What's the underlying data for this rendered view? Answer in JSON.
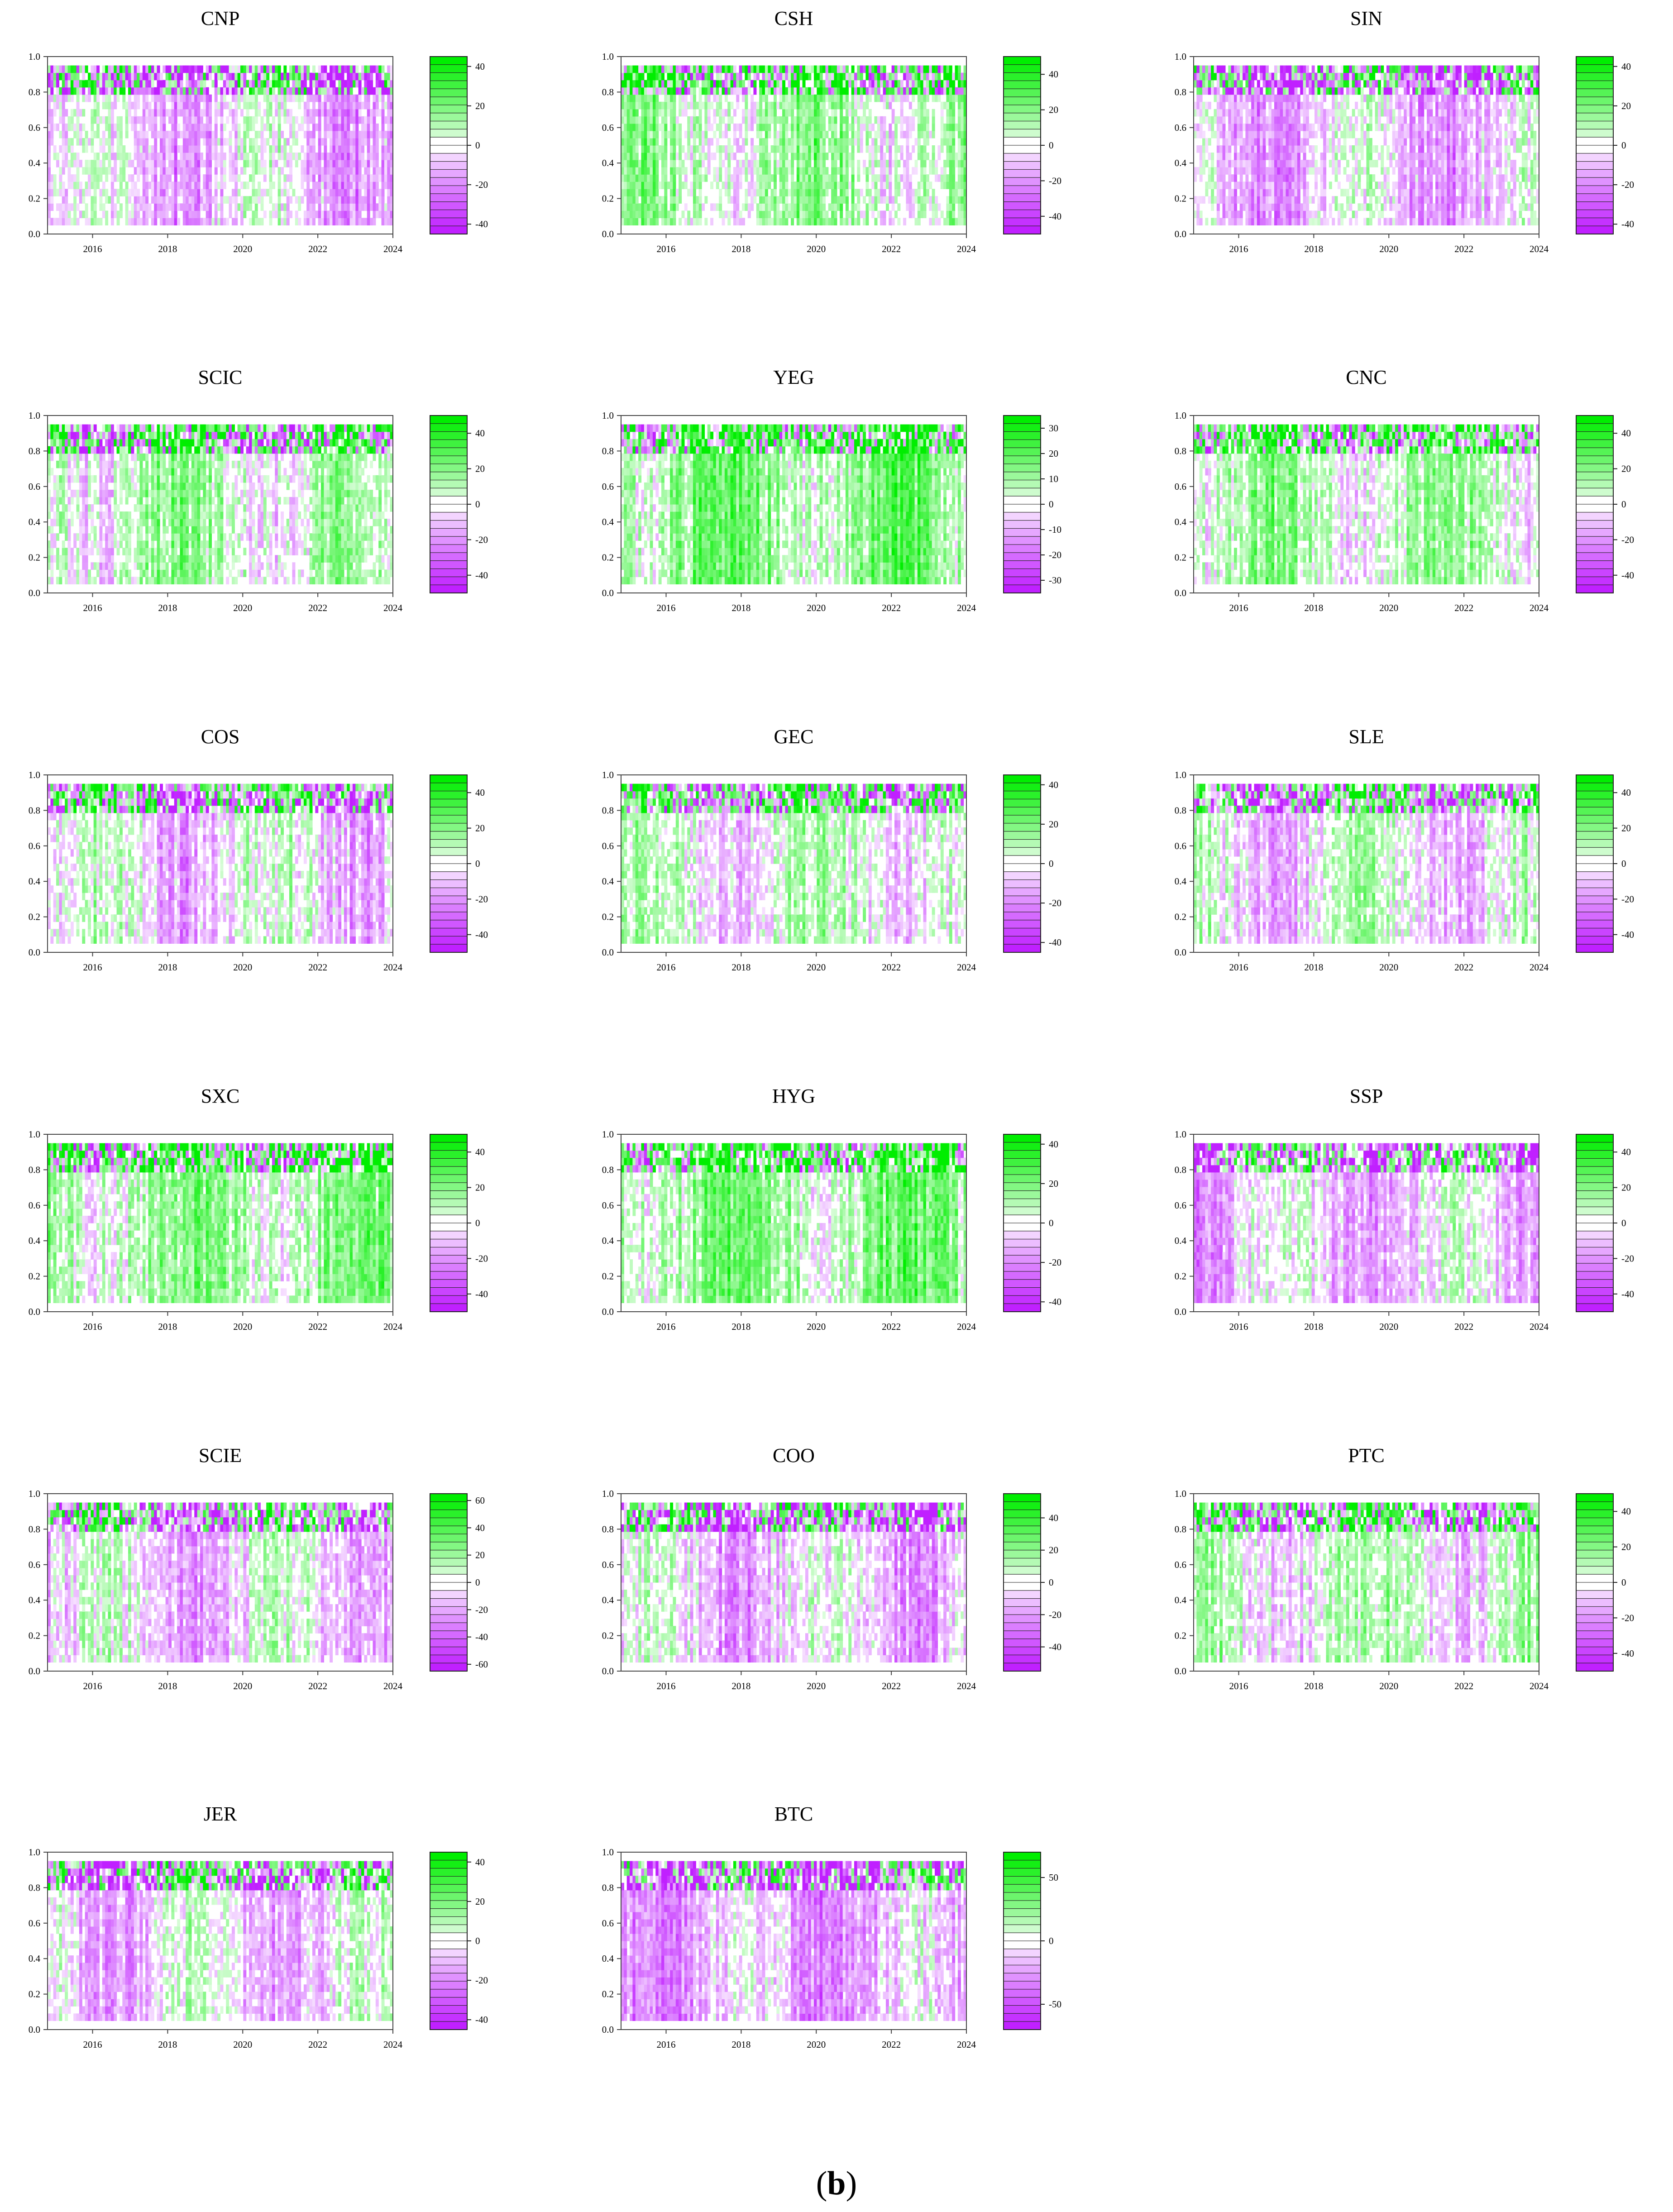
{
  "figure": {
    "caption_open": "(",
    "caption_letter": "b",
    "caption_close": ")",
    "palette": {
      "positive": "#00ee00",
      "negative": "#c020ff",
      "neutral": "#ffffff",
      "frame": "#444444"
    }
  },
  "chart_data": [
    {
      "type": "heatmap",
      "title": "CNP",
      "x_ticks": [
        "2016",
        "2018",
        "2020",
        "2022",
        "2024"
      ],
      "y_ticks": [
        "0.0",
        "0.2",
        "0.4",
        "0.6",
        "0.8",
        "1.0"
      ],
      "ylim": [
        0,
        1
      ],
      "xlim": [
        2014.8,
        2024
      ],
      "colorbar_labels": [
        "40",
        "20",
        "0",
        "-20",
        "-40"
      ],
      "colorbar_range": [
        -45,
        45
      ],
      "tone": -0.3
    },
    {
      "type": "heatmap",
      "title": "CSH",
      "x_ticks": [
        "2016",
        "2018",
        "2020",
        "2022",
        "2024"
      ],
      "y_ticks": [
        "0.0",
        "0.2",
        "0.4",
        "0.6",
        "0.8",
        "1.0"
      ],
      "ylim": [
        0,
        1
      ],
      "xlim": [
        2014.8,
        2024
      ],
      "colorbar_labels": [
        "40",
        "20",
        "0",
        "-20",
        "-40"
      ],
      "colorbar_range": [
        -50,
        50
      ],
      "tone": 0.35
    },
    {
      "type": "heatmap",
      "title": "SIN",
      "x_ticks": [
        "2016",
        "2018",
        "2020",
        "2022",
        "2024"
      ],
      "y_ticks": [
        "0.0",
        "0.2",
        "0.4",
        "0.6",
        "0.8",
        "1.0"
      ],
      "ylim": [
        0,
        1
      ],
      "xlim": [
        2014.8,
        2024
      ],
      "colorbar_labels": [
        "40",
        "20",
        "0",
        "-20",
        "-40"
      ],
      "colorbar_range": [
        -45,
        45
      ],
      "tone": -0.35
    },
    {
      "type": "heatmap",
      "title": "SCIC",
      "x_ticks": [
        "2016",
        "2018",
        "2020",
        "2022",
        "2024"
      ],
      "y_ticks": [
        "0.0",
        "0.2",
        "0.4",
        "0.6",
        "0.8",
        "1.0"
      ],
      "ylim": [
        0,
        1
      ],
      "xlim": [
        2014.8,
        2024
      ],
      "colorbar_labels": [
        "40",
        "20",
        "0",
        "-20",
        "-40"
      ],
      "colorbar_range": [
        -50,
        50
      ],
      "tone": 0.25
    },
    {
      "type": "heatmap",
      "title": "YEG",
      "x_ticks": [
        "2016",
        "2018",
        "2020",
        "2022",
        "2024"
      ],
      "y_ticks": [
        "0.0",
        "0.2",
        "0.4",
        "0.6",
        "0.8",
        "1.0"
      ],
      "ylim": [
        0,
        1
      ],
      "xlim": [
        2014.8,
        2024
      ],
      "colorbar_labels": [
        "30",
        "20",
        "10",
        "0",
        "-10",
        "-20",
        "-30"
      ],
      "colorbar_range": [
        -35,
        35
      ],
      "tone": 0.6
    },
    {
      "type": "heatmap",
      "title": "CNC",
      "x_ticks": [
        "2016",
        "2018",
        "2020",
        "2022",
        "2024"
      ],
      "y_ticks": [
        "0.0",
        "0.2",
        "0.4",
        "0.6",
        "0.8",
        "1.0"
      ],
      "ylim": [
        0,
        1
      ],
      "xlim": [
        2014.8,
        2024
      ],
      "colorbar_labels": [
        "40",
        "20",
        "0",
        "-20",
        "-40"
      ],
      "colorbar_range": [
        -50,
        50
      ],
      "tone": 0.3
    },
    {
      "type": "heatmap",
      "title": "COS",
      "x_ticks": [
        "2016",
        "2018",
        "2020",
        "2022",
        "2024"
      ],
      "y_ticks": [
        "0.0",
        "0.2",
        "0.4",
        "0.6",
        "0.8",
        "1.0"
      ],
      "ylim": [
        0,
        1
      ],
      "xlim": [
        2014.8,
        2024
      ],
      "colorbar_labels": [
        "40",
        "20",
        "0",
        "-20",
        "-40"
      ],
      "colorbar_range": [
        -50,
        50
      ],
      "tone": -0.15
    },
    {
      "type": "heatmap",
      "title": "GEC",
      "x_ticks": [
        "2016",
        "2018",
        "2020",
        "2022",
        "2024"
      ],
      "y_ticks": [
        "0.0",
        "0.2",
        "0.4",
        "0.6",
        "0.8",
        "1.0"
      ],
      "ylim": [
        0,
        1
      ],
      "xlim": [
        2014.8,
        2024
      ],
      "colorbar_labels": [
        "40",
        "20",
        "0",
        "-20",
        "-40"
      ],
      "colorbar_range": [
        -45,
        45
      ],
      "tone": 0.1
    },
    {
      "type": "heatmap",
      "title": "SLE",
      "x_ticks": [
        "2016",
        "2018",
        "2020",
        "2022",
        "2024"
      ],
      "y_ticks": [
        "0.0",
        "0.2",
        "0.4",
        "0.6",
        "0.8",
        "1.0"
      ],
      "ylim": [
        0,
        1
      ],
      "xlim": [
        2014.8,
        2024
      ],
      "colorbar_labels": [
        "40",
        "20",
        "0",
        "-20",
        "-40"
      ],
      "colorbar_range": [
        -50,
        50
      ],
      "tone": -0.1
    },
    {
      "type": "heatmap",
      "title": "SXC",
      "x_ticks": [
        "2016",
        "2018",
        "2020",
        "2022",
        "2024"
      ],
      "y_ticks": [
        "0.0",
        "0.2",
        "0.4",
        "0.6",
        "0.8",
        "1.0"
      ],
      "ylim": [
        0,
        1
      ],
      "xlim": [
        2014.8,
        2024
      ],
      "colorbar_labels": [
        "40",
        "20",
        "0",
        "-20",
        "-40"
      ],
      "colorbar_range": [
        -50,
        50
      ],
      "tone": 0.45
    },
    {
      "type": "heatmap",
      "title": "HYG",
      "x_ticks": [
        "2016",
        "2018",
        "2020",
        "2022",
        "2024"
      ],
      "y_ticks": [
        "0.0",
        "0.2",
        "0.4",
        "0.6",
        "0.8",
        "1.0"
      ],
      "ylim": [
        0,
        1
      ],
      "xlim": [
        2014.8,
        2024
      ],
      "colorbar_labels": [
        "40",
        "20",
        "0",
        "-20",
        "-40"
      ],
      "colorbar_range": [
        -45,
        45
      ],
      "tone": 0.55
    },
    {
      "type": "heatmap",
      "title": "SSP",
      "x_ticks": [
        "2016",
        "2018",
        "2020",
        "2022",
        "2024"
      ],
      "y_ticks": [
        "0.0",
        "0.2",
        "0.4",
        "0.6",
        "0.8",
        "1.0"
      ],
      "ylim": [
        0,
        1
      ],
      "xlim": [
        2014.8,
        2024
      ],
      "colorbar_labels": [
        "40",
        "20",
        "0",
        "-20",
        "-40"
      ],
      "colorbar_range": [
        -50,
        50
      ],
      "tone": -0.3
    },
    {
      "type": "heatmap",
      "title": "SCIE",
      "x_ticks": [
        "2016",
        "2018",
        "2020",
        "2022",
        "2024"
      ],
      "y_ticks": [
        "0.0",
        "0.2",
        "0.4",
        "0.6",
        "0.8",
        "1.0"
      ],
      "ylim": [
        0,
        1
      ],
      "xlim": [
        2014.8,
        2024
      ],
      "colorbar_labels": [
        "60",
        "40",
        "20",
        "0",
        "-20",
        "-40",
        "-60"
      ],
      "colorbar_range": [
        -65,
        65
      ],
      "tone": -0.2
    },
    {
      "type": "heatmap",
      "title": "COO",
      "x_ticks": [
        "2016",
        "2018",
        "2020",
        "2022",
        "2024"
      ],
      "y_ticks": [
        "0.0",
        "0.2",
        "0.4",
        "0.6",
        "0.8",
        "1.0"
      ],
      "ylim": [
        0,
        1
      ],
      "xlim": [
        2014.8,
        2024
      ],
      "colorbar_labels": [
        "40",
        "20",
        "0",
        "-20",
        "-40"
      ],
      "colorbar_range": [
        -55,
        55
      ],
      "tone": -0.3
    },
    {
      "type": "heatmap",
      "title": "PTC",
      "x_ticks": [
        "2016",
        "2018",
        "2020",
        "2022",
        "2024"
      ],
      "y_ticks": [
        "0.0",
        "0.2",
        "0.4",
        "0.6",
        "0.8",
        "1.0"
      ],
      "ylim": [
        0,
        1
      ],
      "xlim": [
        2014.8,
        2024
      ],
      "colorbar_labels": [
        "40",
        "20",
        "0",
        "-20",
        "-40"
      ],
      "colorbar_range": [
        -50,
        50
      ],
      "tone": 0.1
    },
    {
      "type": "heatmap",
      "title": "JER",
      "x_ticks": [
        "2016",
        "2018",
        "2020",
        "2022",
        "2024"
      ],
      "y_ticks": [
        "0.0",
        "0.2",
        "0.4",
        "0.6",
        "0.8",
        "1.0"
      ],
      "ylim": [
        0,
        1
      ],
      "xlim": [
        2014.8,
        2024
      ],
      "colorbar_labels": [
        "40",
        "20",
        "0",
        "-20",
        "-40"
      ],
      "colorbar_range": [
        -45,
        45
      ],
      "tone": -0.2
    },
    {
      "type": "heatmap",
      "title": "BTC",
      "x_ticks": [
        "2016",
        "2018",
        "2020",
        "2022",
        "2024"
      ],
      "y_ticks": [
        "0.0",
        "0.2",
        "0.4",
        "0.6",
        "0.8",
        "1.0"
      ],
      "ylim": [
        0,
        1
      ],
      "xlim": [
        2014.8,
        2024
      ],
      "colorbar_labels": [
        "50",
        "0",
        "-50"
      ],
      "colorbar_range": [
        -70,
        70
      ],
      "tone": -0.5
    }
  ]
}
